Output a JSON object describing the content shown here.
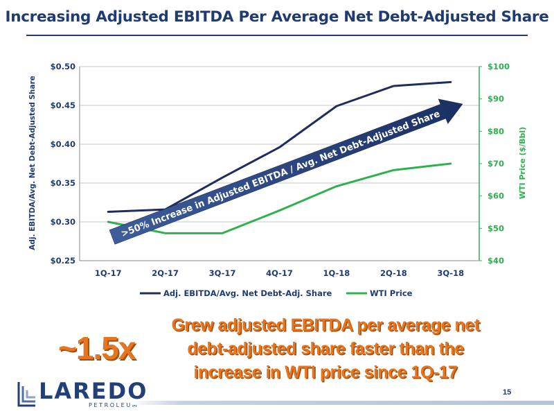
{
  "slide": {
    "title": "Increasing Adjusted EBITDA Per Average Net Debt-Adjusted Share",
    "callout_big": "~1.5x",
    "callout_text": "Grew adjusted EBITDA per average net debt-adjusted share faster than the increase in WTI price since 1Q-17",
    "page_number": "15"
  },
  "logo": {
    "word": "LAREDO",
    "sub": "PETROLEUM"
  },
  "colors": {
    "title": "#1f3b72",
    "ebitda": "#1f2c5e",
    "wti": "#2fb04e",
    "callout": "#e5751f",
    "arrow": "#1e3568"
  },
  "chart_data": {
    "type": "line",
    "categories": [
      "1Q-17",
      "2Q-17",
      "3Q-17",
      "4Q-17",
      "1Q-18",
      "2Q-18",
      "3Q-18"
    ],
    "series": [
      {
        "name": "Adj. EBITDA/Avg. Net Debt-Adj. Share",
        "axis": "left",
        "values": [
          0.313,
          0.316,
          0.357,
          0.396,
          0.449,
          0.475,
          0.48
        ]
      },
      {
        "name": "WTI Price",
        "axis": "right",
        "values": [
          52,
          48.5,
          48.5,
          55.5,
          63,
          68,
          70
        ]
      }
    ],
    "y_left": {
      "label": "Adj. EBITDA/Avg. Net Debt-Adjusted Share",
      "range": [
        0.25,
        0.5
      ],
      "ticks": [
        "$0.25",
        "$0.30",
        "$0.35",
        "$0.40",
        "$0.45",
        "$0.50"
      ]
    },
    "y_right": {
      "label": "WTI Price ($/Bbl)",
      "range": [
        40,
        100
      ],
      "ticks": [
        "$40",
        "$50",
        "$60",
        "$70",
        "$80",
        "$90",
        "$100"
      ]
    },
    "annotation": ">50% Increase in Adjusted EBITDA / Avg. Net Debt-Adjusted Share",
    "grid": true,
    "legend_position": "bottom"
  }
}
